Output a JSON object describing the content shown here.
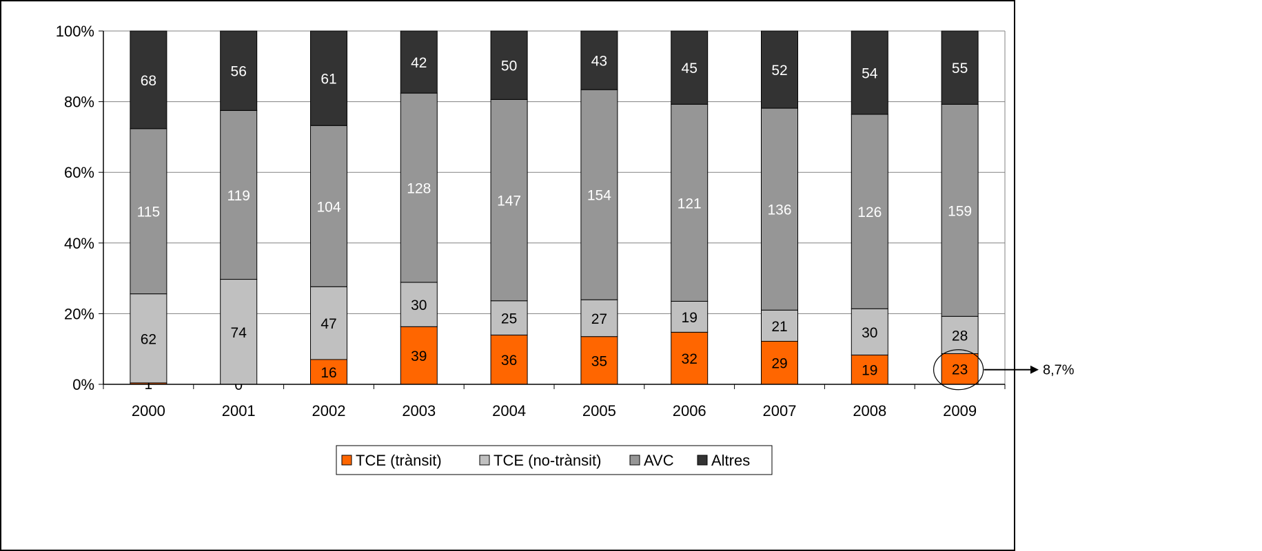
{
  "chart_data": {
    "type": "bar",
    "stacked": "percent",
    "categories": [
      "2000",
      "2001",
      "2002",
      "2003",
      "2004",
      "2005",
      "2006",
      "2007",
      "2008",
      "2009"
    ],
    "series": [
      {
        "name": "TCE (trànsit)",
        "color": "#FF6600",
        "values": [
          1,
          0,
          16,
          39,
          36,
          35,
          32,
          29,
          19,
          23
        ]
      },
      {
        "name": "TCE (no-trànsit)",
        "color": "#C0C0C0",
        "values": [
          62,
          74,
          47,
          30,
          25,
          27,
          19,
          21,
          30,
          28
        ]
      },
      {
        "name": "AVC",
        "color": "#969696",
        "values": [
          115,
          119,
          104,
          128,
          147,
          154,
          121,
          136,
          126,
          159
        ]
      },
      {
        "name": "Altres",
        "color": "#333333",
        "values": [
          68,
          56,
          61,
          42,
          50,
          43,
          45,
          52,
          54,
          55
        ]
      }
    ],
    "ylim": [
      0,
      100
    ],
    "yticks": [
      "0%",
      "20%",
      "40%",
      "60%",
      "80%",
      "100%"
    ],
    "grid": true,
    "legend_position": "bottom",
    "annotation": {
      "category": "2009",
      "series": "TCE (trànsit)",
      "text": "8,7%"
    }
  }
}
